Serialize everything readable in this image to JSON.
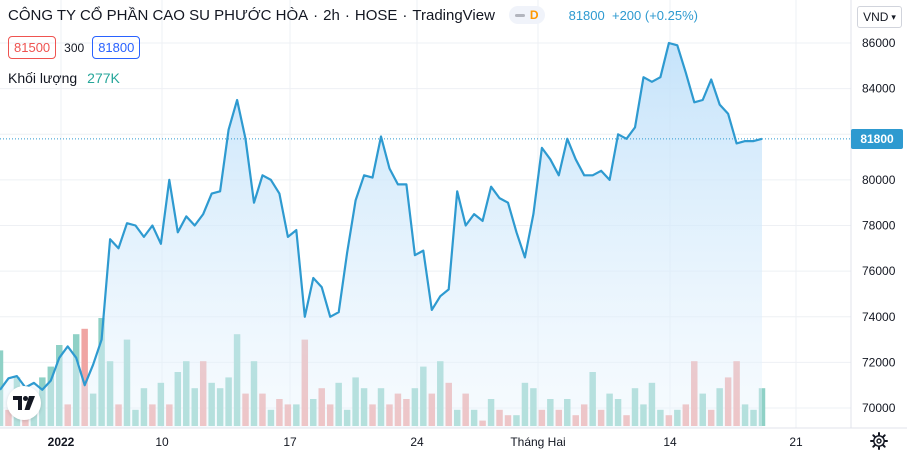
{
  "legend": {
    "title": "CÔNG TY CỔ PHẦN CAO SU PHƯỚC HÒA",
    "interval": "2h",
    "exchange": "HOSE",
    "source": "TradingView",
    "delay_badge": "D",
    "last": "81800",
    "change": "+200 (+0.25%)",
    "bid": "81500",
    "spread": "300",
    "ask": "81800",
    "volume_label": "Khối lượng",
    "volume_value": "277K"
  },
  "currency": "VND",
  "price_axis_label": "81800",
  "colors": {
    "line": "#2e9ad0",
    "area_top": "#cfe8fb",
    "vol_up": "#8fd1c6",
    "vol_down": "#f0a5a3",
    "grid": "#eef0f4"
  },
  "chart_data": {
    "type": "area",
    "y_ticks": [
      "86000",
      "84000",
      "82000",
      "80000",
      "78000",
      "76000",
      "74000",
      "72000",
      "70000"
    ],
    "ylim": [
      69600,
      86200
    ],
    "x_ticks": [
      "2022",
      "10",
      "17",
      "24",
      "Tháng Hai",
      "14",
      "21"
    ],
    "current_price": 81800,
    "price": [
      70800,
      71300,
      71400,
      70900,
      71100,
      70800,
      71200,
      72200,
      72700,
      72200,
      71000,
      71900,
      73000,
      77400,
      77000,
      78100,
      78000,
      77500,
      78000,
      77200,
      80000,
      77700,
      78400,
      78000,
      78500,
      79400,
      79500,
      82200,
      83500,
      81800,
      79000,
      80200,
      80000,
      79400,
      77500,
      77800,
      74000,
      75700,
      75300,
      74000,
      74200,
      76800,
      79100,
      80200,
      80100,
      81900,
      80500,
      79800,
      79800,
      76700,
      76900,
      74300,
      74900,
      75200,
      79500,
      78000,
      78500,
      78200,
      79700,
      79200,
      79000,
      77700,
      76600,
      78500,
      81400,
      80900,
      80200,
      81800,
      80900,
      80200,
      80200,
      80400,
      80000,
      82000,
      81800,
      82300,
      84500,
      84300,
      84500,
      86000,
      85900,
      84700,
      83400,
      83500,
      84400,
      83300,
      82900,
      81600,
      81700,
      81700,
      81800
    ],
    "volume": [
      0.7,
      0.15,
      0.45,
      0.3,
      0.3,
      0.45,
      0.55,
      0.75,
      0.2,
      0.85,
      0.9,
      0.3,
      1.0,
      0.6,
      0.2,
      0.8,
      0.15,
      0.35,
      0.2,
      0.4,
      0.2,
      0.5,
      0.6,
      0.35,
      0.6,
      0.4,
      0.35,
      0.45,
      0.85,
      0.3,
      0.6,
      0.3,
      0.15,
      0.25,
      0.2,
      0.2,
      0.8,
      0.25,
      0.35,
      0.2,
      0.4,
      0.15,
      0.45,
      0.35,
      0.2,
      0.35,
      0.2,
      0.3,
      0.25,
      0.35,
      0.55,
      0.3,
      0.6,
      0.4,
      0.15,
      0.3,
      0.15,
      0.05,
      0.25,
      0.15,
      0.1,
      0.1,
      0.4,
      0.35,
      0.15,
      0.25,
      0.15,
      0.25,
      0.1,
      0.2,
      0.5,
      0.15,
      0.3,
      0.25,
      0.1,
      0.35,
      0.2,
      0.4,
      0.15,
      0.1,
      0.15,
      0.2,
      0.6,
      0.3,
      0.15,
      0.35,
      0.45,
      0.6,
      0.2,
      0.15,
      0.35
    ],
    "volume_up": [
      true,
      false,
      true,
      false,
      true,
      true,
      true,
      true,
      false,
      true,
      false,
      true,
      true,
      true,
      false,
      true,
      true,
      true,
      false,
      true,
      false,
      true,
      true,
      true,
      false,
      true,
      true,
      true,
      true,
      false,
      true,
      false,
      true,
      false,
      false,
      true,
      false,
      true,
      false,
      false,
      true,
      true,
      true,
      true,
      false,
      true,
      false,
      false,
      false,
      true,
      true,
      false,
      true,
      false,
      true,
      false,
      true,
      false,
      true,
      false,
      false,
      true,
      true,
      true,
      false,
      true,
      false,
      true,
      false,
      false,
      true,
      false,
      true,
      true,
      false,
      true,
      true,
      true,
      true,
      false,
      true,
      false,
      false,
      true,
      false,
      true,
      false,
      false,
      true,
      true,
      true
    ]
  }
}
